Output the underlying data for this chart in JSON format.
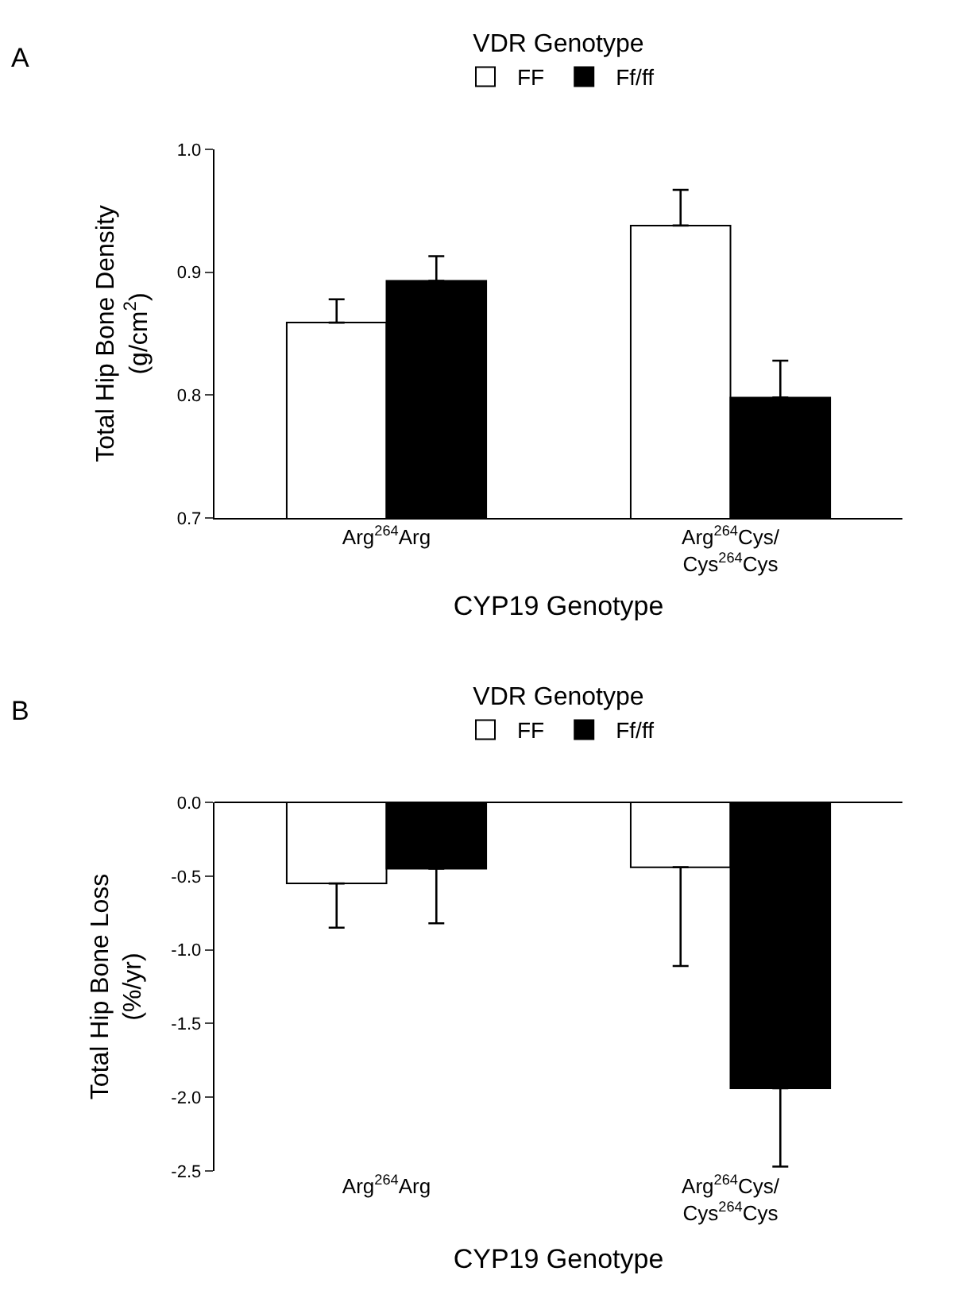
{
  "chart_data": [
    {
      "type": "bar",
      "annotations": [
        "A"
      ],
      "legend_title": "VDR Genotype",
      "xlabel": "CYP19 Genotype",
      "ylabel": "Total Hip Bone Density\n(g/cm$^{2}$)",
      "categories": [
        "Arg$^{264}$Arg",
        "Arg$^{264}$Cys/\nCys$^{264}$Cys"
      ],
      "ylim": [
        0.7,
        1.0
      ],
      "yticks": [
        0.7,
        0.8,
        0.9,
        {
          "value": 1,
          "label": "1.0"
        }
      ],
      "grid": false,
      "legend": "top",
      "series": [
        {
          "name": "FF",
          "color": "#ffffff",
          "values": [
            0.859,
            0.938
          ],
          "errors": [
            [
              0.859,
              0.878
            ],
            [
              0.938,
              0.967
            ]
          ]
        },
        {
          "name": "Ff/ff",
          "color": "#000000",
          "values": [
            0.893,
            0.798
          ],
          "errors": [
            [
              0.893,
              0.913
            ],
            [
              0.798,
              0.828
            ]
          ]
        }
      ]
    },
    {
      "type": "bar",
      "annotations": [
        "B"
      ],
      "legend_title": "VDR Genotype",
      "xlabel": "CYP19 Genotype",
      "ylabel": "Total Hip Bone Loss\n(%/yr)",
      "categories": [
        "Arg$^{264}$Arg",
        "Arg$^{264}$Cys/\nCys$^{264}$Cys"
      ],
      "ylim": [
        -2.5,
        0.0
      ],
      "yticks": [
        -2.5,
        {
          "value": -2,
          "label": "-2.0"
        },
        -1.5,
        {
          "value": -1,
          "label": "-1.0"
        },
        -0.5,
        {
          "value": 0,
          "label": "0.0"
        }
      ],
      "grid": false,
      "legend": "top",
      "series": [
        {
          "name": "FF",
          "color": "#ffffff",
          "values": [
            -0.55,
            -0.44
          ],
          "errors": [
            [
              -0.85,
              -0.55
            ],
            [
              -1.11,
              -0.44
            ]
          ]
        },
        {
          "name": "Ff/ff",
          "color": "#000000",
          "values": [
            -0.45,
            -1.94
          ],
          "errors": [
            [
              -0.82,
              -0.45
            ],
            [
              -2.47,
              -1.94
            ]
          ]
        }
      ]
    }
  ]
}
